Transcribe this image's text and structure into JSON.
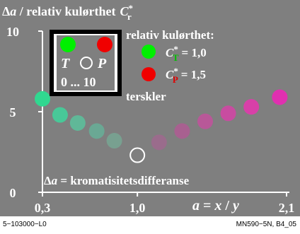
{
  "title": {
    "prefix": "Δ",
    "var": "a",
    "text": " / relativ kulørthet",
    "sym": "C",
    "sup": "*",
    "sub": "r"
  },
  "legend": {
    "heading": "relativ kulørthet:",
    "entries": [
      {
        "sym": "C",
        "sup": "*",
        "sub": "T",
        "eq": "= 1,0",
        "color": "#00f000",
        "sub_color": "#00c000"
      },
      {
        "sym": "C",
        "sup": "*",
        "sub": "P",
        "eq": "= 1,5",
        "color": "#f00000",
        "sub_color": "#e00000"
      }
    ],
    "footer": "terskler"
  },
  "inset": {
    "label_left": "T",
    "label_right": "P",
    "range": "0 ... 10",
    "swatch_left": "#00f000",
    "swatch_right": "#f00000"
  },
  "annotation": {
    "prefix": "Δ",
    "var": "a",
    "text": " = kromatisitetsdifferanse"
  },
  "xaxis_label": {
    "a": "a",
    "eq": " = ",
    "x": "x",
    "slash": " / ",
    "y": "y"
  },
  "footer": {
    "left": "5−103000−L0",
    "right": "MN590−5N, B4_05"
  },
  "colors": {
    "background": "#7f7f7f",
    "axes": "#ffffff"
  },
  "chart_data": {
    "type": "scatter",
    "xlim": [
      0.3,
      2.1
    ],
    "ylim": [
      0,
      10
    ],
    "xticks": [
      "0,3",
      "1,0",
      "2,1"
    ],
    "yticks": [
      "0",
      "5",
      "10"
    ],
    "series": [
      {
        "points": [
          {
            "x": 0.3,
            "y": 5.8,
            "color": "#30d890"
          },
          {
            "x": 0.43,
            "y": 4.8,
            "color": "#48c898"
          },
          {
            "x": 0.56,
            "y": 4.3,
            "color": "#60b898"
          },
          {
            "x": 0.7,
            "y": 3.8,
            "color": "#6aa894"
          },
          {
            "x": 0.83,
            "y": 3.2,
            "color": "#78a090"
          },
          {
            "x": 1.0,
            "y": 2.3,
            "color": "#7f7f7f",
            "hollow": true
          },
          {
            "x": 1.16,
            "y": 3.1,
            "color": "#9a6c8c"
          },
          {
            "x": 1.33,
            "y": 3.8,
            "color": "#a86090"
          },
          {
            "x": 1.5,
            "y": 4.4,
            "color": "#b85898"
          },
          {
            "x": 1.67,
            "y": 4.9,
            "color": "#c84ca0"
          },
          {
            "x": 1.84,
            "y": 5.3,
            "color": "#d840a8"
          },
          {
            "x": 2.05,
            "y": 5.9,
            "color": "#e030b0"
          }
        ]
      }
    ]
  }
}
